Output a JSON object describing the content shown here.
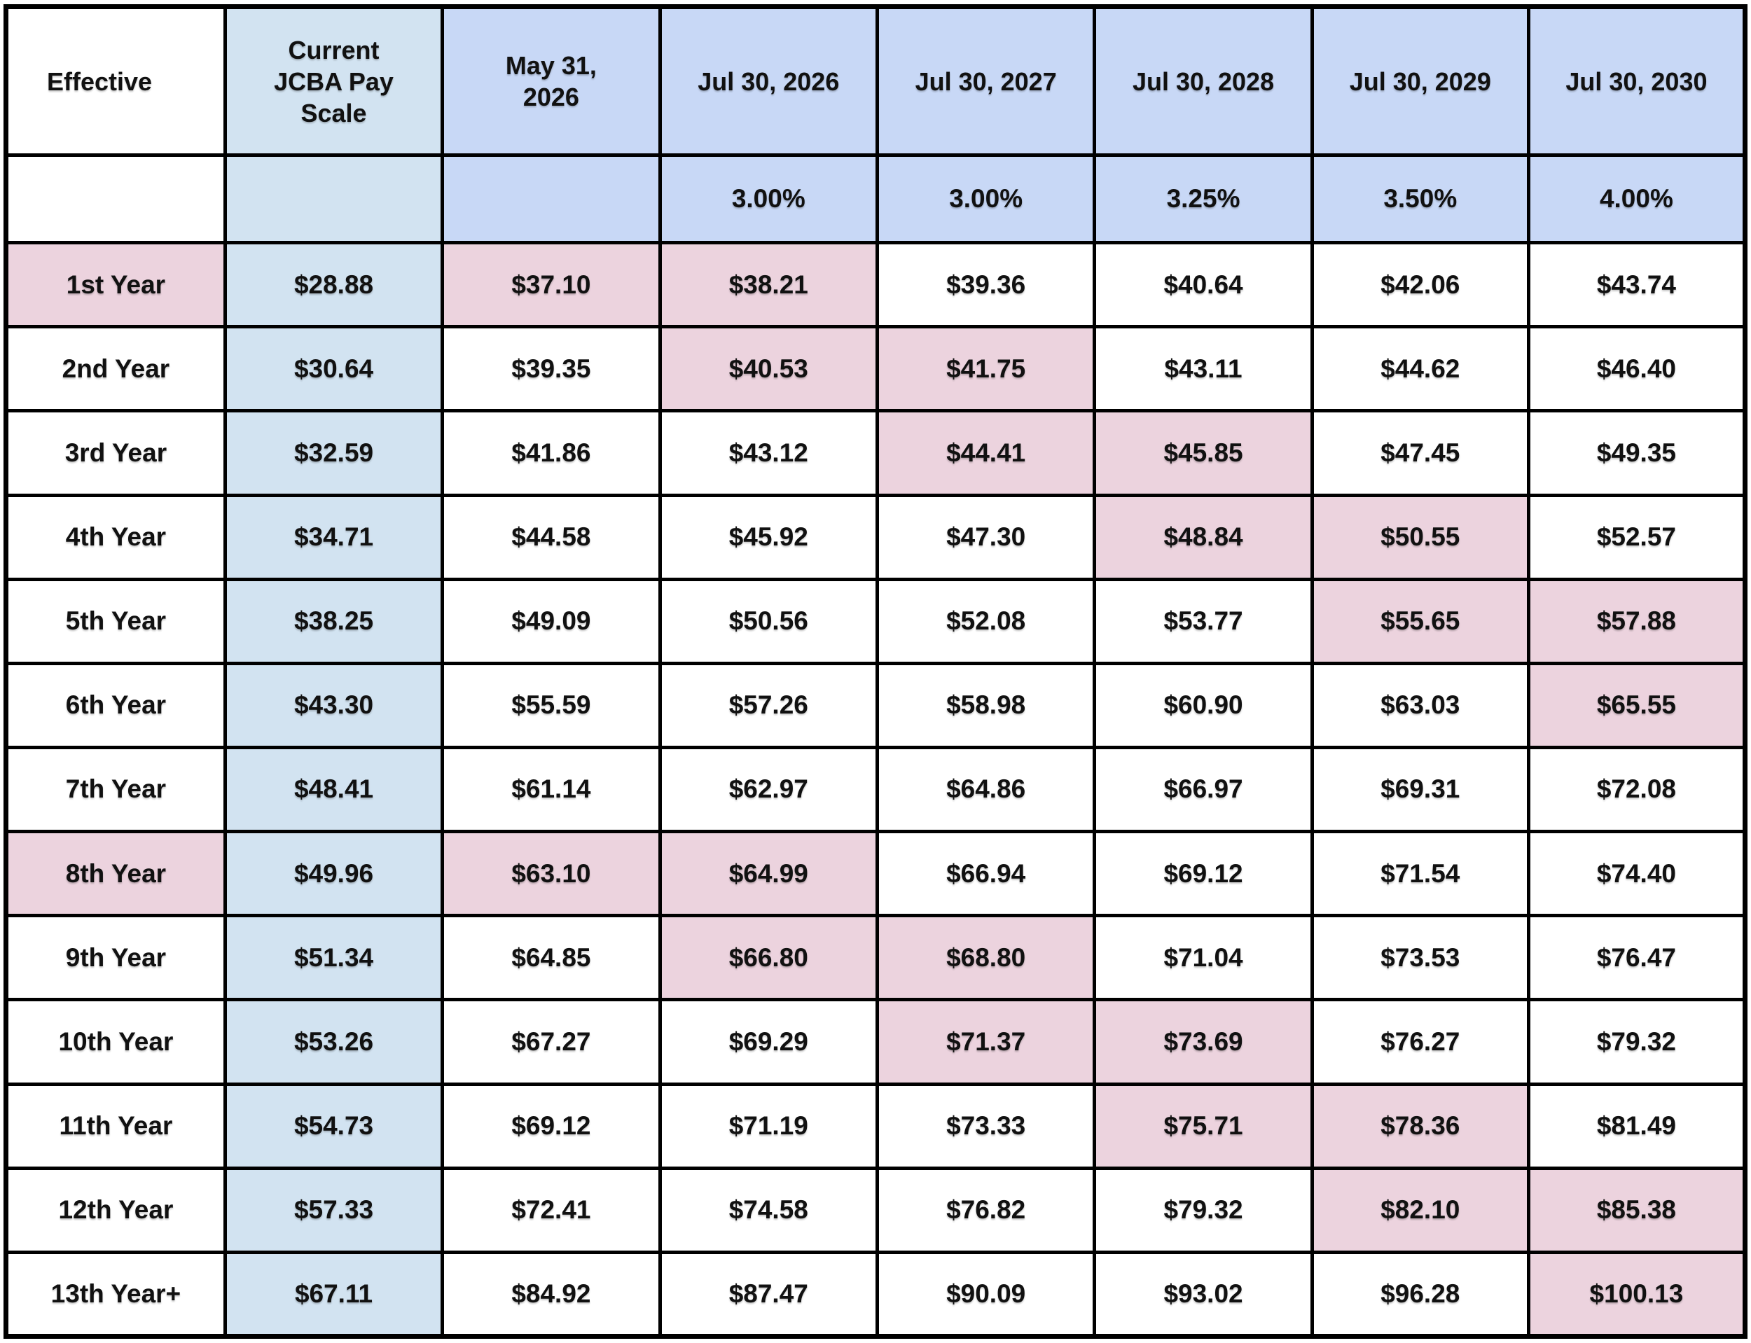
{
  "colors": {
    "date_header_blue": "#c8d8f6",
    "current_scale_blue": "#d2e3f1",
    "highlight_pink": "#ecd3de",
    "grid_black": "#000000",
    "text_black": "#111111"
  },
  "table": {
    "columns": [
      "Effective",
      "Current\nJCBA Pay\nScale",
      "May 31,\n2026",
      "Jul 30, 2026",
      "Jul 30, 2027",
      "Jul 30, 2028",
      "Jul 30, 2029",
      "Jul 30, 2030"
    ],
    "increase_row": [
      "",
      "",
      "",
      "3.00%",
      "3.00%",
      "3.25%",
      "3.50%",
      "4.00%"
    ],
    "rows": [
      {
        "label": "1st Year",
        "values": [
          "$28.88",
          "$37.10",
          "$38.21",
          "$39.36",
          "$40.64",
          "$42.06",
          "$43.74"
        ],
        "highlight": [
          0,
          2,
          3
        ]
      },
      {
        "label": "2nd Year",
        "values": [
          "$30.64",
          "$39.35",
          "$40.53",
          "$41.75",
          "$43.11",
          "$44.62",
          "$46.40"
        ],
        "highlight": [
          3,
          4
        ]
      },
      {
        "label": "3rd Year",
        "values": [
          "$32.59",
          "$41.86",
          "$43.12",
          "$44.41",
          "$45.85",
          "$47.45",
          "$49.35"
        ],
        "highlight": [
          4,
          5
        ]
      },
      {
        "label": "4th Year",
        "values": [
          "$34.71",
          "$44.58",
          "$45.92",
          "$47.30",
          "$48.84",
          "$50.55",
          "$52.57"
        ],
        "highlight": [
          5,
          6
        ]
      },
      {
        "label": "5th Year",
        "values": [
          "$38.25",
          "$49.09",
          "$50.56",
          "$52.08",
          "$53.77",
          "$55.65",
          "$57.88"
        ],
        "highlight": [
          6,
          7
        ]
      },
      {
        "label": "6th Year",
        "values": [
          "$43.30",
          "$55.59",
          "$57.26",
          "$58.98",
          "$60.90",
          "$63.03",
          "$65.55"
        ],
        "highlight": [
          7
        ]
      },
      {
        "label": "7th Year",
        "values": [
          "$48.41",
          "$61.14",
          "$62.97",
          "$64.86",
          "$66.97",
          "$69.31",
          "$72.08"
        ],
        "highlight": []
      },
      {
        "label": "8th Year",
        "values": [
          "$49.96",
          "$63.10",
          "$64.99",
          "$66.94",
          "$69.12",
          "$71.54",
          "$74.40"
        ],
        "highlight": [
          0,
          2,
          3
        ]
      },
      {
        "label": "9th Year",
        "values": [
          "$51.34",
          "$64.85",
          "$66.80",
          "$68.80",
          "$71.04",
          "$73.53",
          "$76.47"
        ],
        "highlight": [
          3,
          4
        ]
      },
      {
        "label": "10th Year",
        "values": [
          "$53.26",
          "$67.27",
          "$69.29",
          "$71.37",
          "$73.69",
          "$76.27",
          "$79.32"
        ],
        "highlight": [
          4,
          5
        ]
      },
      {
        "label": "11th Year",
        "values": [
          "$54.73",
          "$69.12",
          "$71.19",
          "$73.33",
          "$75.71",
          "$78.36",
          "$81.49"
        ],
        "highlight": [
          5,
          6
        ]
      },
      {
        "label": "12th Year",
        "values": [
          "$57.33",
          "$72.41",
          "$74.58",
          "$76.82",
          "$79.32",
          "$82.10",
          "$85.38"
        ],
        "highlight": [
          6,
          7
        ]
      },
      {
        "label": "13th Year+",
        "values": [
          "$67.11",
          "$84.92",
          "$87.47",
          "$90.09",
          "$93.02",
          "$96.28",
          "$100.13"
        ],
        "highlight": [
          7
        ]
      }
    ]
  }
}
